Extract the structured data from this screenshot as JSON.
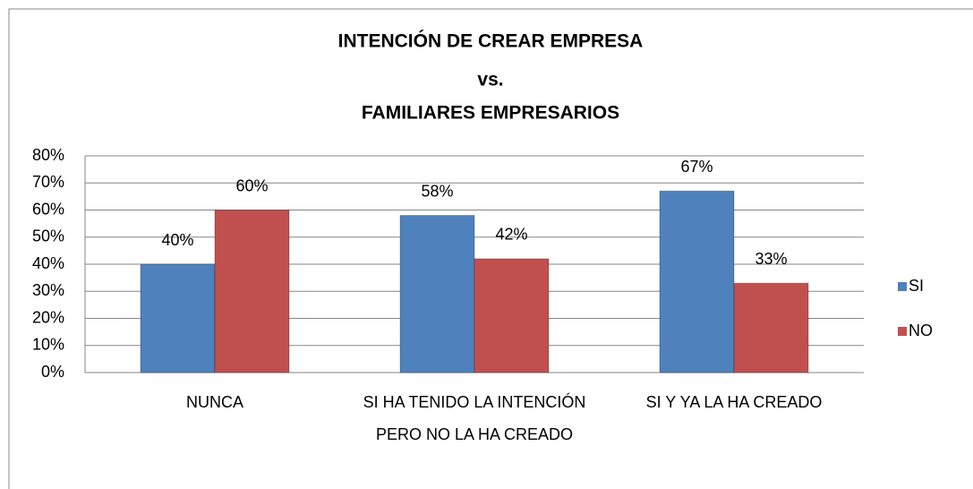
{
  "chart_data": {
    "type": "bar",
    "title": [
      "INTENCIÓN DE CREAR EMPRESA",
      "vs.",
      "FAMILIARES EMPRESARIOS"
    ],
    "categories": [
      "NUNCA",
      "SI HA TENIDO LA INTENCIÓN PERO NO LA HA CREADO",
      "SI Y YA LA HA CREADO"
    ],
    "series": [
      {
        "name": "SI",
        "color": "#4f81bd",
        "values": [
          40,
          58,
          67
        ],
        "value_labels": [
          "40%",
          "58%",
          "67%"
        ]
      },
      {
        "name": "NO",
        "color": "#c0504d",
        "values": [
          60,
          42,
          33
        ],
        "value_labels": [
          "60%",
          "42%",
          "33%"
        ]
      }
    ],
    "ylim": [
      0,
      80
    ],
    "yticks": [
      {
        "value": 0,
        "label": "0%"
      },
      {
        "value": 10,
        "label": "10%"
      },
      {
        "value": 20,
        "label": "20%"
      },
      {
        "value": 30,
        "label": "30%"
      },
      {
        "value": 40,
        "label": "40%"
      },
      {
        "value": 50,
        "label": "50%"
      },
      {
        "value": 60,
        "label": "60%"
      },
      {
        "value": 70,
        "label": "70%"
      },
      {
        "value": 80,
        "label": "80%"
      }
    ],
    "grid": true,
    "legend": "right"
  }
}
